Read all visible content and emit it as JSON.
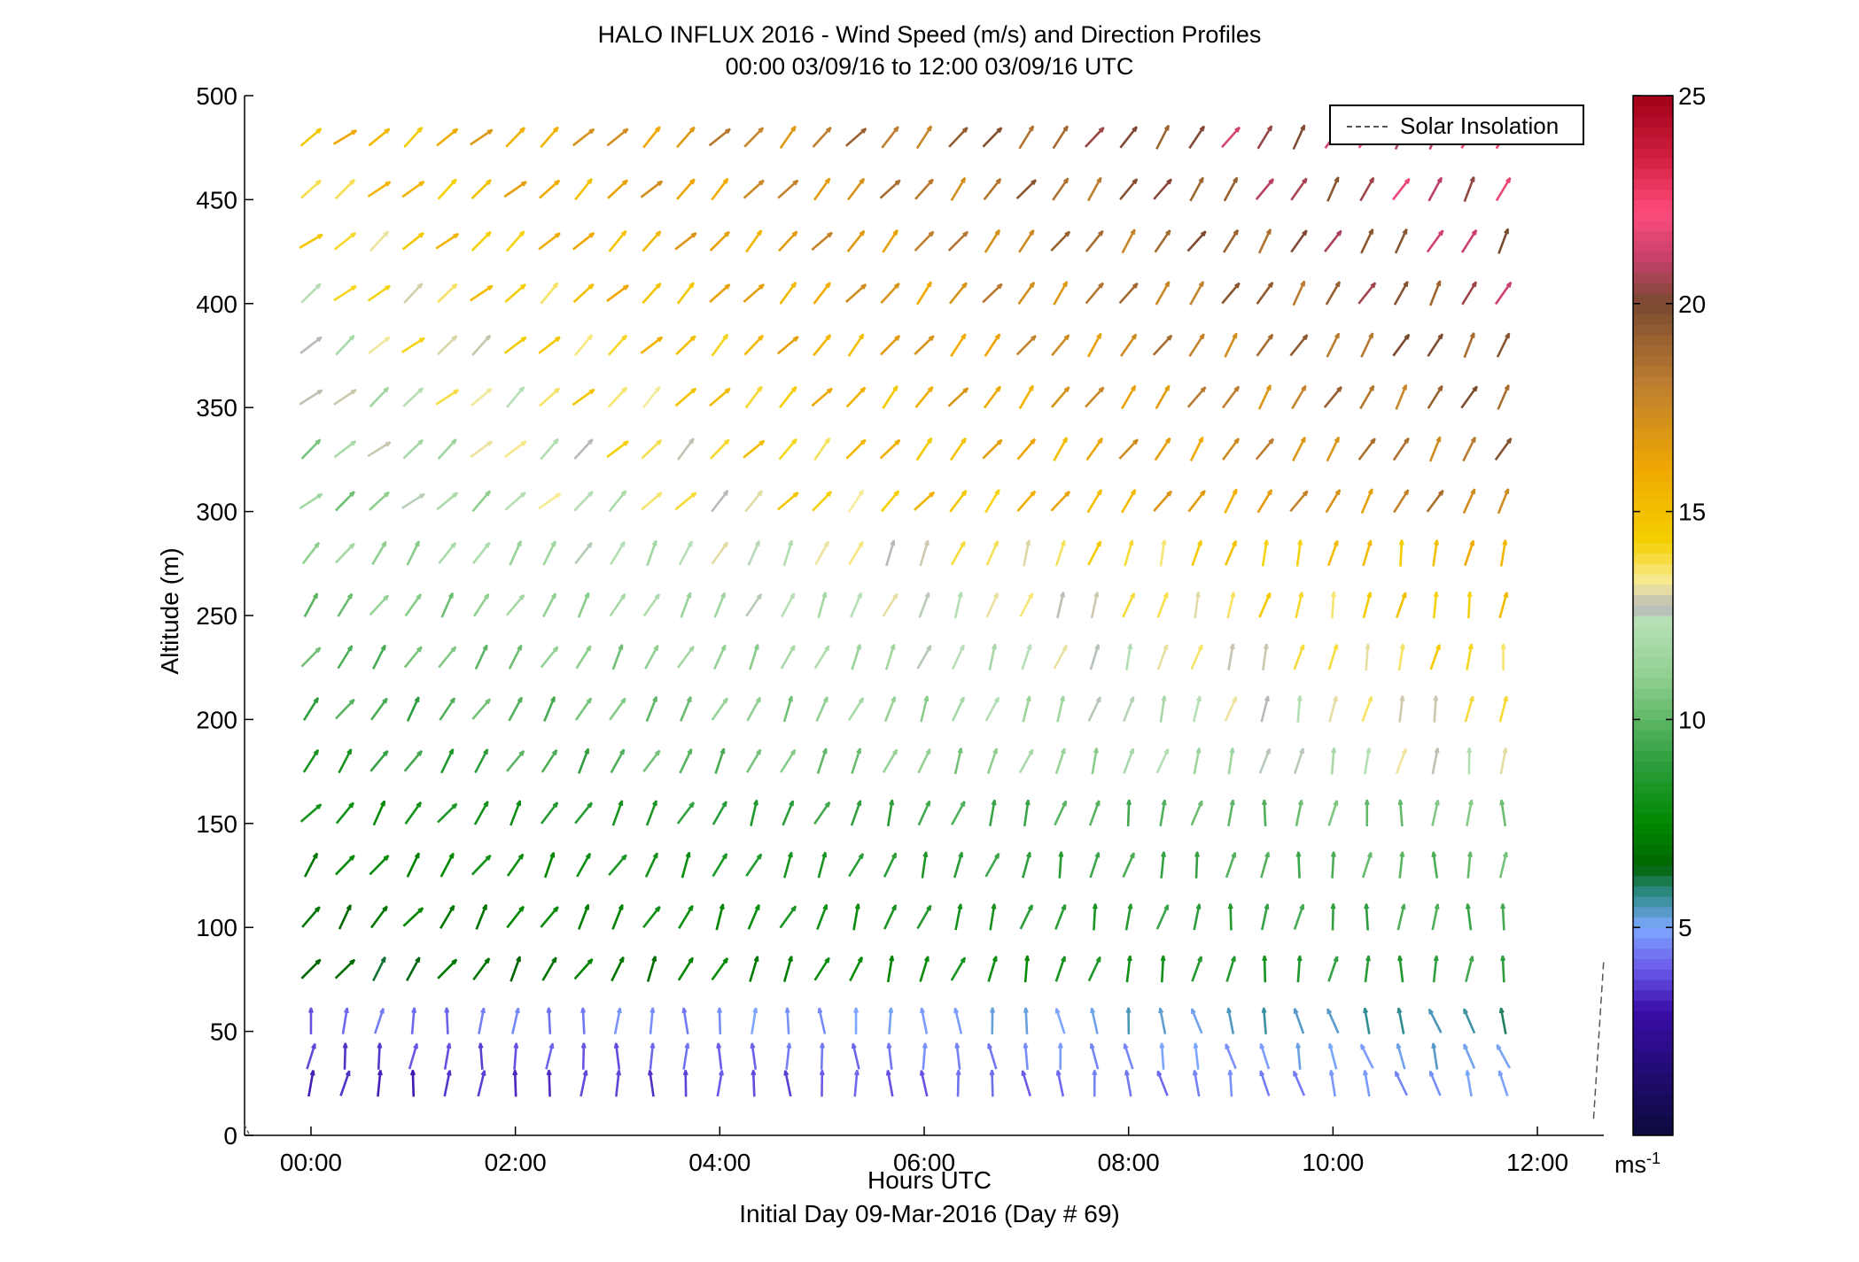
{
  "title": {
    "line1": "HALO INFLUX 2016 - Wind Speed (m/s) and Direction Profiles",
    "line2": "00:00 03/09/16 to 12:00 03/09/16  UTC"
  },
  "xlabel": {
    "line1": "Hours UTC",
    "line2": "Initial Day 09-Mar-2016 (Day # 69)"
  },
  "ylabel": "Altitude (m)",
  "legend": {
    "label": "Solar Insolation",
    "placement": "top-right"
  },
  "colorbar": {
    "unit": "ms",
    "unit_exp": "-1",
    "range": [
      0,
      25
    ],
    "ticks": [
      5,
      10,
      15,
      20,
      25
    ],
    "colormap": [
      [
        0,
        "#0b0b3b"
      ],
      [
        3,
        "#3a0ca8"
      ],
      [
        4,
        "#6a5ae8"
      ],
      [
        5,
        "#7fa8ff"
      ],
      [
        5.8,
        "#2e8b8b"
      ],
      [
        6.5,
        "#006400"
      ],
      [
        7.5,
        "#008800"
      ],
      [
        9,
        "#2e9e3e"
      ],
      [
        11,
        "#8fcf8f"
      ],
      [
        12.4,
        "#b8e0b8"
      ],
      [
        12.7,
        "#b8b8b8"
      ],
      [
        13.3,
        "#f7ec9a"
      ],
      [
        14.3,
        "#f5d000"
      ],
      [
        16,
        "#f0a800"
      ],
      [
        18,
        "#c08030"
      ],
      [
        20,
        "#7a4a30"
      ],
      [
        21,
        "#c04068"
      ],
      [
        22.2,
        "#ff4c7c"
      ],
      [
        23.5,
        "#d02040"
      ],
      [
        25,
        "#a00018"
      ]
    ]
  },
  "chart_data": {
    "type": "wind-barb-profile",
    "title": "HALO INFLUX 2016 - Wind Speed (m/s) and Direction Profiles",
    "subtitle": "00:00 03/09/16 to 12:00 03/09/16  UTC",
    "xlabel": "Hours UTC",
    "ylabel": "Altitude (m)",
    "xlim": [
      -0.65,
      12.65
    ],
    "ylim": [
      0,
      500
    ],
    "x_ticks": [
      0,
      2,
      4,
      6,
      8,
      10,
      12
    ],
    "x_tick_labels": [
      "00:00",
      "02:00",
      "04:00",
      "06:00",
      "08:00",
      "10:00",
      "12:00"
    ],
    "y_ticks": [
      0,
      50,
      100,
      150,
      200,
      250,
      300,
      350,
      400,
      450,
      500
    ],
    "times": [
      0,
      0.333,
      0.667,
      1,
      1.333,
      1.667,
      2,
      2.333,
      2.667,
      3,
      3.333,
      3.667,
      4,
      4.333,
      4.667,
      5,
      5.333,
      5.667,
      6,
      6.333,
      6.667,
      7,
      7.333,
      7.667,
      8,
      8.333,
      8.667,
      9,
      9.333,
      9.667,
      10,
      10.333,
      10.667,
      11,
      11.333,
      11.667
    ],
    "altitudes": [
      25,
      38,
      55,
      80,
      105,
      130,
      155,
      180,
      205,
      230,
      255,
      280,
      305,
      330,
      355,
      380,
      405,
      430,
      455,
      480
    ],
    "series": [
      {
        "time_range": [
          0,
          11.667
        ],
        "altitude_range": [
          25,
          55
        ],
        "speed_ms": [
          3,
          6
        ],
        "direction_deg": [
          150,
          200
        ]
      },
      {
        "time_range": [
          0,
          11.667
        ],
        "altitude_range": [
          80,
          155
        ],
        "speed_ms": [
          6,
          11
        ],
        "direction_deg": [
          170,
          230
        ]
      },
      {
        "time_range": [
          0,
          11.667
        ],
        "altitude_range": [
          180,
          280
        ],
        "speed_ms": [
          8,
          16
        ],
        "direction_deg": [
          180,
          225
        ]
      },
      {
        "time_range": [
          0,
          11.667
        ],
        "altitude_range": [
          305,
          480
        ],
        "speed_ms": [
          10,
          23
        ],
        "direction_deg": [
          200,
          240
        ]
      }
    ],
    "solar_insolation": {
      "style": "dashed",
      "color": "#555555",
      "visible_end": true
    }
  }
}
